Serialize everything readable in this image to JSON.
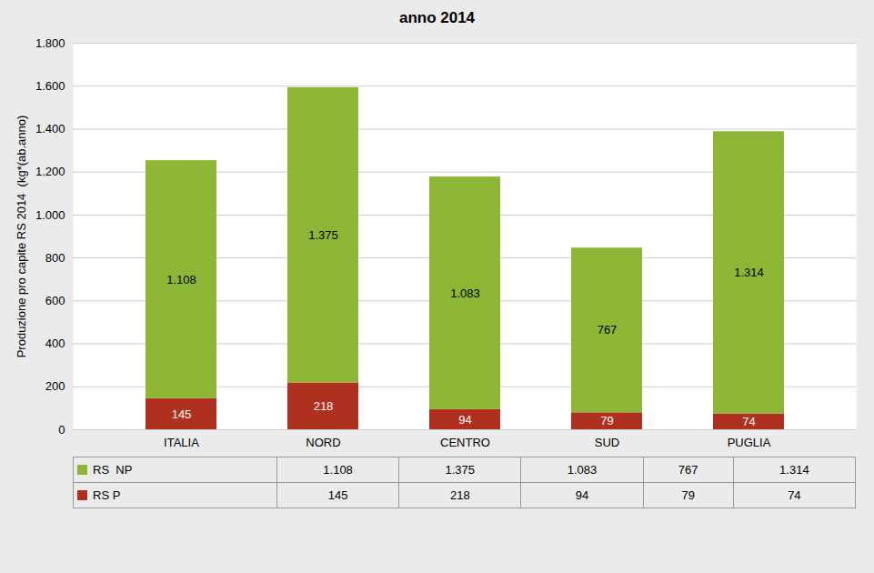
{
  "chart_data": {
    "type": "bar",
    "title": "anno 2014",
    "ylabel": "Produzione pro capite RS 2014  (kg*(ab.anno)",
    "categories": [
      "ITALIA",
      "NORD",
      "CENTRO",
      "SUD",
      "PUGLIA"
    ],
    "stacked": true,
    "series": [
      {
        "name": "RS P",
        "color": "#B03020",
        "values": [
          145,
          218,
          94,
          79,
          74
        ]
      },
      {
        "name": "RS  NP",
        "color": "#8DB634",
        "values": [
          1108,
          1375,
          1083,
          767,
          1314
        ],
        "value_labels": [
          "1.108",
          "1.375",
          "1.083",
          "767",
          "1.314"
        ]
      }
    ],
    "ylim": [
      0,
      1800
    ],
    "yticks": [
      0,
      200,
      400,
      600,
      800,
      {
        "value": 1000,
        "label": "1.000"
      },
      {
        "value": 1200,
        "label": "1.200"
      },
      {
        "value": 1400,
        "label": "1.400"
      },
      {
        "value": 1600,
        "label": "1.600"
      },
      {
        "value": 1800,
        "label": "1.800"
      }
    ],
    "grid": true,
    "data_labels": true,
    "legend": "bottom"
  }
}
